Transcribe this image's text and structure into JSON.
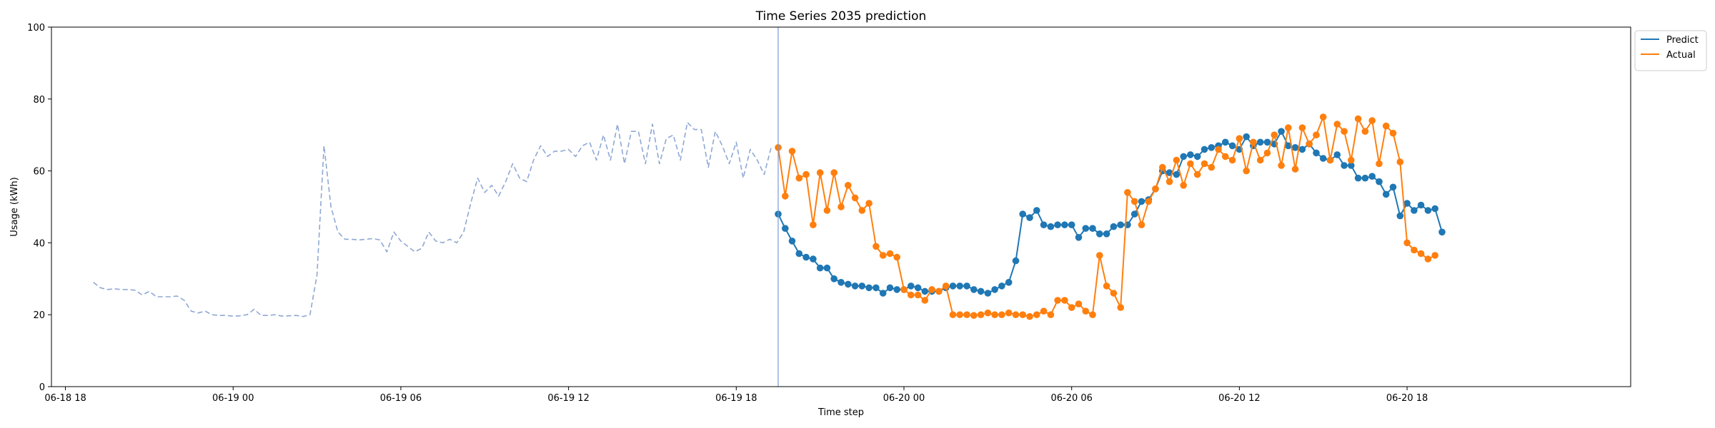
{
  "chart_data": {
    "type": "line",
    "title": "Time Series 2035 prediction",
    "xlabel": "Time step",
    "ylabel": "Usage (kWh)",
    "ylim": [
      0,
      100
    ],
    "yticks": [
      0,
      20,
      40,
      60,
      80,
      100
    ],
    "xlim": [
      "2035-06-18 17:30",
      "2035-06-21 02:00"
    ],
    "xticks": [
      {
        "t": "2035-06-18 18:00",
        "label": "06-18 18"
      },
      {
        "t": "2035-06-19 00:00",
        "label": "06-19 00"
      },
      {
        "t": "2035-06-19 06:00",
        "label": "06-19 06"
      },
      {
        "t": "2035-06-19 12:00",
        "label": "06-19 12"
      },
      {
        "t": "2035-06-19 18:00",
        "label": "06-19 18"
      },
      {
        "t": "2035-06-20 00:00",
        "label": "06-20 00"
      },
      {
        "t": "2035-06-20 06:00",
        "label": "06-20 06"
      },
      {
        "t": "2035-06-20 12:00",
        "label": "06-20 12"
      },
      {
        "t": "2035-06-20 18:00",
        "label": "06-20 18"
      }
    ],
    "split_time": "2035-06-19 19:30",
    "grid": false,
    "legend_position": "upper-right, outside plot",
    "series": [
      {
        "id": "history",
        "color": "#8fa8d4",
        "style": "dashed",
        "start": "2035-06-18 19:00",
        "step_minutes": 15,
        "values": [
          29,
          27.5,
          27,
          27.2,
          27,
          27,
          26.8,
          25.5,
          26.5,
          25,
          25,
          25,
          25.2,
          24,
          21,
          20.5,
          21,
          20,
          19.8,
          19.8,
          19.6,
          19.7,
          20,
          21.5,
          19.8,
          19.8,
          20,
          19.6,
          19.7,
          19.8,
          19.5,
          20,
          31,
          67,
          50,
          43,
          41,
          41,
          40.8,
          41,
          41.2,
          40.8,
          37.5,
          43,
          40.5,
          39,
          37.5,
          38.5,
          43,
          40.5,
          40,
          41,
          40,
          43,
          51,
          58,
          54,
          56,
          53,
          57,
          62,
          58,
          57,
          63,
          67,
          64,
          65.5,
          65.5,
          66,
          64,
          67,
          68,
          63,
          70,
          63,
          73,
          62,
          71,
          71,
          62,
          73,
          62,
          69,
          70,
          63,
          73.5,
          71.5,
          71.5,
          61,
          71,
          67,
          62,
          68,
          58,
          66,
          63,
          59,
          66.5
        ]
      },
      {
        "name": "Predict",
        "color": "#1f77b4",
        "style": "solid-markers",
        "start": "2035-06-19 19:30",
        "step_minutes": 15,
        "values": [
          48,
          44,
          40.5,
          37,
          36,
          35.5,
          33,
          33,
          30,
          29,
          28.5,
          28,
          28,
          27.5,
          27.5,
          26,
          27.5,
          27,
          27,
          28,
          27.5,
          26.5,
          26.5,
          26.5,
          27.5,
          28,
          28,
          28,
          27,
          26.5,
          26,
          27,
          28,
          29,
          35,
          48,
          47,
          49,
          45,
          44.5,
          45,
          45,
          45,
          41.5,
          44,
          44,
          42.5,
          42.5,
          44.5,
          45,
          45,
          48,
          51.5,
          52,
          55,
          60,
          59.5,
          59,
          64,
          64.5,
          64,
          66,
          66.5,
          67,
          68,
          67,
          66,
          69.5,
          67,
          68,
          68,
          67.5,
          71,
          67,
          66.5,
          66,
          67.5,
          65,
          63.5,
          63,
          64.5,
          61.5,
          61.5,
          58,
          58,
          58.5,
          57,
          53.5,
          55.5,
          47.5,
          51,
          49,
          50.5,
          49,
          49.5,
          43
        ]
      },
      {
        "name": "Actual",
        "color": "#ff7f0e",
        "style": "solid-markers",
        "start": "2035-06-19 19:30",
        "step_minutes": 15,
        "values": [
          66.5,
          53,
          65.5,
          58,
          59,
          45,
          59.5,
          49,
          59.5,
          50,
          56,
          52.5,
          49,
          51,
          39,
          36.5,
          37,
          36,
          27,
          25.5,
          25.5,
          24,
          27,
          26.5,
          28,
          20,
          20,
          20,
          19.8,
          20,
          20.5,
          20,
          20,
          20.5,
          20,
          20,
          19.5,
          20,
          21,
          20,
          24,
          24,
          22,
          23,
          21,
          20,
          36.5,
          28,
          26,
          22,
          54,
          51.5,
          45,
          51.5,
          55,
          61,
          57,
          63,
          56,
          62,
          59,
          62,
          61,
          66,
          64,
          63,
          69,
          60,
          68,
          63,
          65,
          70,
          61.5,
          72,
          60.5,
          72,
          67.5,
          70,
          75,
          63,
          73,
          71,
          63,
          74.5,
          71,
          74,
          62,
          72.5,
          70.5,
          62.5,
          40,
          38,
          37,
          35.5,
          36.5
        ]
      }
    ]
  }
}
